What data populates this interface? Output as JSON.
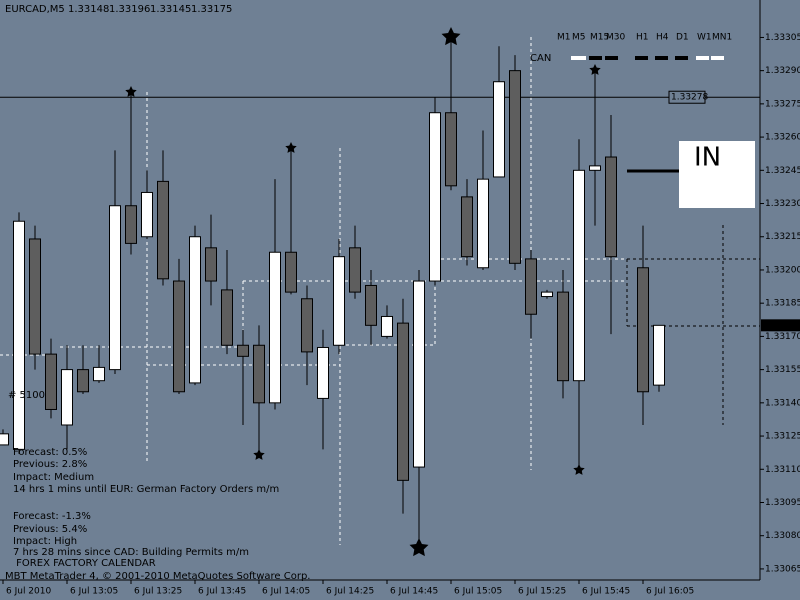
{
  "chart_data": {
    "type": "candlestick",
    "title": "EURCAD,M5",
    "header_values": [
      1.33148,
      1.33196,
      1.33145,
      1.33175
    ],
    "categories": [
      "6 Jul 2010",
      null,
      null,
      null,
      "6 Jul 13:05",
      null,
      null,
      null,
      "6 Jul 13:25",
      null,
      null,
      null,
      "6 Jul 13:45",
      null,
      null,
      null,
      "6 Jul 14:05",
      null,
      null,
      null,
      "6 Jul 14:25",
      null,
      null,
      null,
      "6 Jul 14:45",
      null,
      null,
      null,
      "6 Jul 15:05",
      null,
      null,
      null,
      "6 Jul 15:25",
      null,
      null,
      null,
      "6 Jul 15:45",
      null,
      null,
      null,
      "6 Jul 16:05",
      null
    ],
    "open": [
      1.33121,
      1.33119,
      1.33214,
      1.33162,
      1.3313,
      1.33155,
      1.3315,
      1.33155,
      1.33229,
      1.33215,
      1.3324,
      1.33195,
      1.33149,
      1.3321,
      1.33191,
      1.33166,
      1.33166,
      1.3314,
      1.33208,
      1.33187,
      1.33142,
      1.33166,
      1.3321,
      1.33193,
      1.3317,
      1.33176,
      1.33111,
      1.33195,
      1.33271,
      1.33233,
      1.33201,
      1.33242,
      1.3329,
      1.33205,
      1.33188,
      1.3319,
      1.3315,
      1.33245,
      1.33251,
      null,
      1.33201,
      1.33148
    ],
    "high": [
      1.33128,
      1.33226,
      1.3322,
      1.33169,
      1.33166,
      1.33166,
      1.33166,
      1.33254,
      1.3328,
      1.33245,
      1.33254,
      1.33205,
      1.3322,
      1.33225,
      1.33209,
      1.33173,
      1.33175,
      1.33241,
      1.33255,
      1.33193,
      1.33173,
      1.33214,
      1.3322,
      1.332,
      1.33184,
      1.33187,
      1.332,
      1.33278,
      1.33305,
      1.33241,
      1.33263,
      1.33301,
      1.33297,
      1.33209,
      1.33191,
      1.332,
      1.33259,
      1.3329,
      1.3327,
      null,
      1.3322,
      1.33175
    ],
    "low": [
      1.33121,
      1.33117,
      1.33155,
      1.33133,
      1.33119,
      1.33144,
      1.33149,
      1.33153,
      1.33207,
      1.33214,
      1.33193,
      1.33144,
      1.33148,
      1.33184,
      1.33162,
      1.3313,
      1.33117,
      1.33137,
      1.33189,
      1.33148,
      1.33119,
      1.33162,
      1.33187,
      1.33166,
      1.33169,
      1.3309,
      1.33076,
      1.33193,
      1.33236,
      1.33202,
      1.332,
      1.33242,
      1.332,
      1.33169,
      1.33187,
      1.33142,
      1.3311,
      1.3322,
      1.33171,
      null,
      1.3313,
      1.33145
    ],
    "close": [
      1.33126,
      1.33222,
      1.33162,
      1.33137,
      1.33155,
      1.33145,
      1.33156,
      1.33229,
      1.33212,
      1.33235,
      1.33196,
      1.33145,
      1.33215,
      1.33195,
      1.33166,
      1.33161,
      1.3314,
      1.33208,
      1.3319,
      1.33163,
      1.33165,
      1.33206,
      1.3319,
      1.33175,
      1.33179,
      1.33105,
      1.33195,
      1.33271,
      1.33238,
      1.33206,
      1.33241,
      1.33285,
      1.33203,
      1.3318,
      1.3319,
      1.3315,
      1.33245,
      1.33247,
      1.33206,
      null,
      1.33145,
      1.33175
    ],
    "up_color": "#ffffff",
    "down_color": "#5e5e5e",
    "wick_color": "#000000",
    "ylim": [
      1.3306,
      1.33321
    ],
    "yticks": [
      1.33305,
      {
        "value": 1.3329,
        "label": "1.33290"
      },
      1.33275,
      {
        "value": 1.3326,
        "label": "1.33260"
      },
      1.33245,
      {
        "value": 1.3323,
        "label": "1.33230"
      },
      1.33215,
      {
        "value": 1.332,
        "label": "1.33200"
      },
      1.33185,
      {
        "value": 1.3317,
        "label": "1.33170"
      },
      1.33155,
      {
        "value": 1.3314,
        "label": "1.33140"
      },
      1.33125,
      {
        "value": 1.3311,
        "label": "1.33110"
      },
      1.33095,
      {
        "value": 1.3308,
        "label": "1.33080"
      },
      1.33065
    ],
    "hline": 1.33278,
    "bid": 1.33175
  },
  "overlay": {
    "timeframes": [
      "M1",
      "M5",
      "M15",
      "M30",
      "H1",
      "H4",
      "D1",
      "W1",
      "MN1"
    ],
    "currency": "CAN",
    "signal": "IN",
    "magic": "#  5100",
    "calendar": [
      "Forecast: 0.5%",
      "Previous: 2.8%",
      "Impact: Medium",
      "14 hrs 1 mins until EUR: German Factory Orders m/m",
      "Forecast: -1.3%",
      "Previous: 5.4%",
      "Impact: High",
      "7 hrs 28 mins since CAD: Building Permits m/m",
      " FOREX FACTORY CALENDAR"
    ],
    "copyright": "MBT MetaTrader 4, © 2001-2010 MetaQuotes Software Corp."
  }
}
